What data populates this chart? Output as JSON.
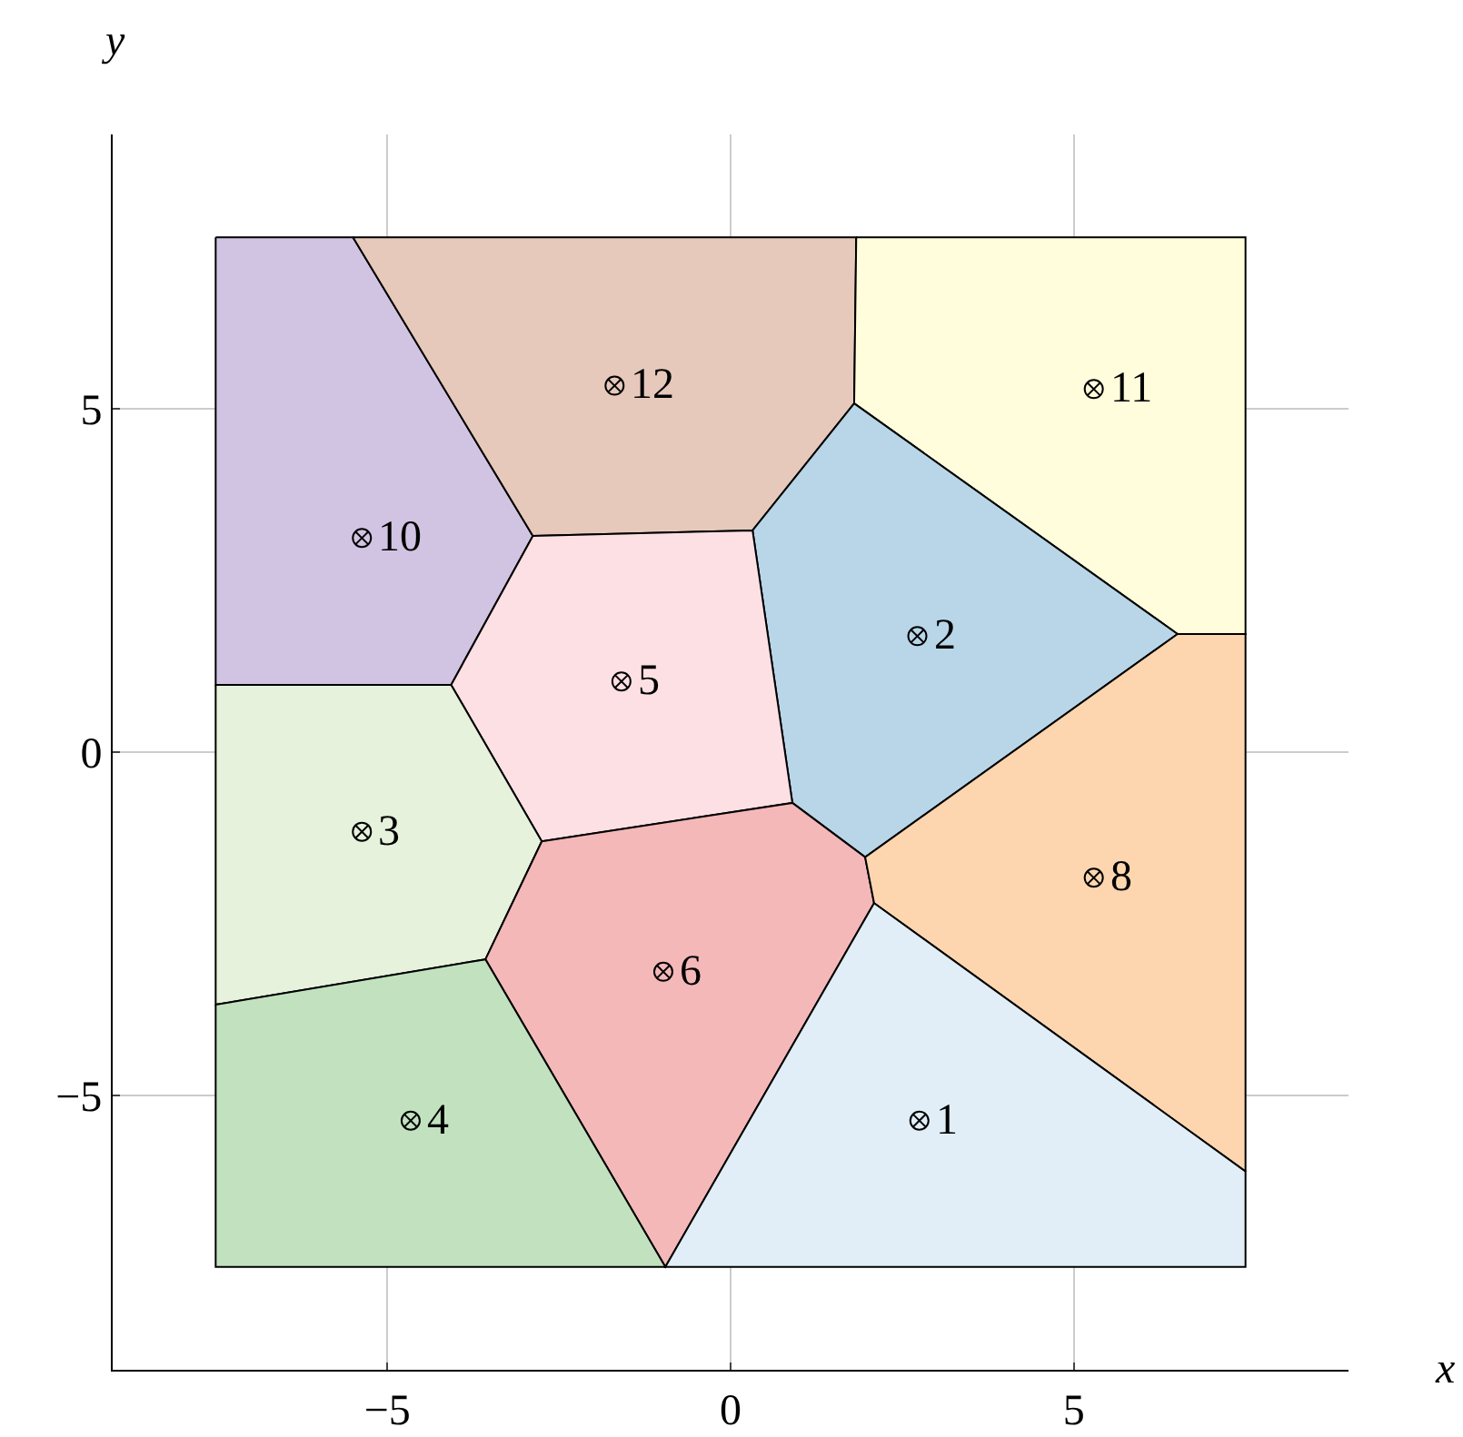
{
  "chart_data": {
    "type": "area",
    "xlabel": "x",
    "ylabel": "y",
    "xlim": [
      -9,
      9
    ],
    "ylim": [
      -9,
      9
    ],
    "xticks": [
      {
        "value": -5,
        "label": "−5"
      },
      0,
      5
    ],
    "yticks": [
      {
        "value": -5,
        "label": "−5"
      },
      0,
      5
    ],
    "grid": true,
    "series": [
      {
        "type": "area",
        "color": "#d1c4e2",
        "x": [
          -7.5,
          -5.5,
          -2.88,
          -4.07,
          -7.5,
          -7.5
        ],
        "values": [
          7.5,
          7.5,
          3.15,
          0.98,
          0.98,
          7.5
        ]
      },
      {
        "type": "area",
        "color": "#e6c9bb",
        "x": [
          -5.5,
          1.83,
          1.8,
          0.32,
          -2.88,
          -5.5
        ],
        "values": [
          7.5,
          7.5,
          5.08,
          3.23,
          3.15,
          7.5
        ]
      },
      {
        "type": "area",
        "color": "#fffddb",
        "x": [
          1.83,
          7.5,
          7.5,
          6.51,
          1.8,
          1.83
        ],
        "values": [
          7.5,
          7.5,
          1.72,
          1.72,
          5.08,
          7.5
        ]
      },
      {
        "type": "area",
        "color": "#b9d6e9",
        "x": [
          1.8,
          6.51,
          1.96,
          0.9,
          0.32,
          1.8
        ],
        "values": [
          5.08,
          1.72,
          -1.53,
          -0.74,
          3.23,
          5.08
        ]
      },
      {
        "type": "area",
        "color": "#fde0e4",
        "x": [
          -2.88,
          0.32,
          0.9,
          -2.75,
          -4.07,
          -2.88
        ],
        "values": [
          3.15,
          3.23,
          -0.74,
          -1.3,
          0.98,
          3.15
        ]
      },
      {
        "type": "area",
        "color": "#e6f2dc",
        "x": [
          -7.5,
          -4.07,
          -2.75,
          -3.57,
          -7.5,
          -7.5
        ],
        "values": [
          0.98,
          0.98,
          -1.3,
          -3.02,
          -3.68,
          0.98
        ]
      },
      {
        "type": "area",
        "color": "#f4b8b9",
        "x": [
          -2.75,
          0.9,
          1.96,
          2.09,
          -0.95,
          -3.57,
          -2.75
        ],
        "values": [
          -1.3,
          -0.74,
          -1.53,
          -2.2,
          -7.5,
          -3.02,
          -1.3
        ]
      },
      {
        "type": "area",
        "color": "#fdd6b0",
        "x": [
          6.51,
          7.5,
          7.5,
          2.09,
          1.96,
          6.51
        ],
        "values": [
          1.72,
          1.72,
          -6.11,
          -2.2,
          -1.53,
          1.72
        ]
      },
      {
        "type": "area",
        "color": "#e1eef7",
        "x": [
          2.09,
          7.5,
          7.5,
          -0.95,
          2.09
        ],
        "values": [
          -2.2,
          -6.11,
          -7.5,
          -7.5,
          -2.2
        ]
      },
      {
        "type": "area",
        "color": "#c2e2bf",
        "x": [
          -7.5,
          -3.57,
          -0.95,
          -7.5,
          -7.5
        ],
        "values": [
          -3.68,
          -3.02,
          -7.5,
          -7.5,
          -3.68
        ]
      },
      {
        "type": "scatter",
        "color": "#000000",
        "marker": "cross",
        "x": [
          2.75,
          2.72,
          -5.37,
          -4.66,
          -1.59,
          -0.98,
          5.29,
          -5.37,
          5.29,
          -1.69
        ],
        "values": [
          -5.37,
          1.69,
          -1.16,
          -5.37,
          1.03,
          -3.2,
          -1.83,
          3.12,
          5.29,
          5.34
        ]
      }
    ],
    "annotations": [
      {
        "text": "1",
        "x": 2.75,
        "y": -5.37
      },
      {
        "text": "2",
        "x": 2.72,
        "y": 1.69
      },
      {
        "text": "3",
        "x": -5.37,
        "y": -1.16
      },
      {
        "text": "4",
        "x": -4.66,
        "y": -5.37
      },
      {
        "text": "5",
        "x": -1.59,
        "y": 1.03
      },
      {
        "text": "6",
        "x": -0.98,
        "y": -3.2
      },
      {
        "text": "8",
        "x": 5.29,
        "y": -1.83
      },
      {
        "text": "10",
        "x": -5.37,
        "y": 3.12
      },
      {
        "text": "11",
        "x": 5.29,
        "y": 5.29
      },
      {
        "text": "12",
        "x": -1.69,
        "y": 5.34
      }
    ]
  }
}
